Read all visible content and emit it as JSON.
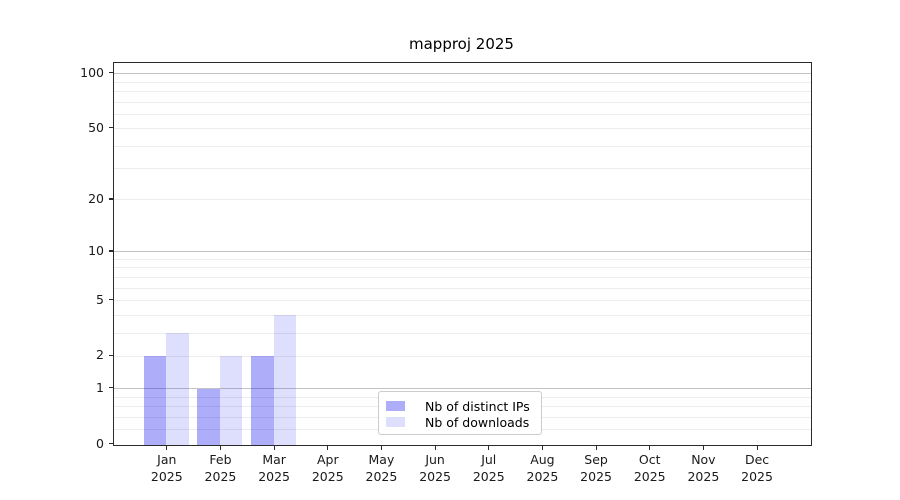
{
  "chart_data": {
    "type": "bar",
    "title": "mapproj 2025",
    "categories": [
      "Jan",
      "Feb",
      "Mar",
      "Apr",
      "May",
      "Jun",
      "Jul",
      "Aug",
      "Sep",
      "Oct",
      "Nov",
      "Dec"
    ],
    "category_year": "2025",
    "series": [
      {
        "name": "Nb of distinct IPs",
        "color": "rgba(20,20,240,0.35)",
        "values": [
          2,
          1,
          2,
          0,
          0,
          0,
          0,
          0,
          0,
          0,
          0,
          0
        ]
      },
      {
        "name": "Nb of downloads",
        "color": "rgba(20,20,240,0.14)",
        "values": [
          3,
          2,
          4,
          0,
          0,
          0,
          0,
          0,
          0,
          0,
          0,
          0
        ]
      }
    ],
    "ytick_labels": [
      "0",
      "1",
      "2",
      "5",
      "10",
      "20",
      "50",
      "100"
    ],
    "yticks": [
      0,
      1,
      2,
      5,
      10,
      20,
      50,
      100
    ],
    "yscale": "log10(1+y)",
    "ylim": [
      0,
      114
    ],
    "xlabel": "",
    "ylabel": "",
    "grid": true,
    "legend_position": "lower center"
  },
  "colors": {
    "bar_distinct_ips_solid": "#ADADFA",
    "bar_downloads_solid": "#DEDEFD",
    "grid_major": "#C3C3C3",
    "grid_minor": "#ECECEC",
    "axis": "#2A2A2A",
    "background": "#FFFFFF",
    "text": "#000000"
  }
}
